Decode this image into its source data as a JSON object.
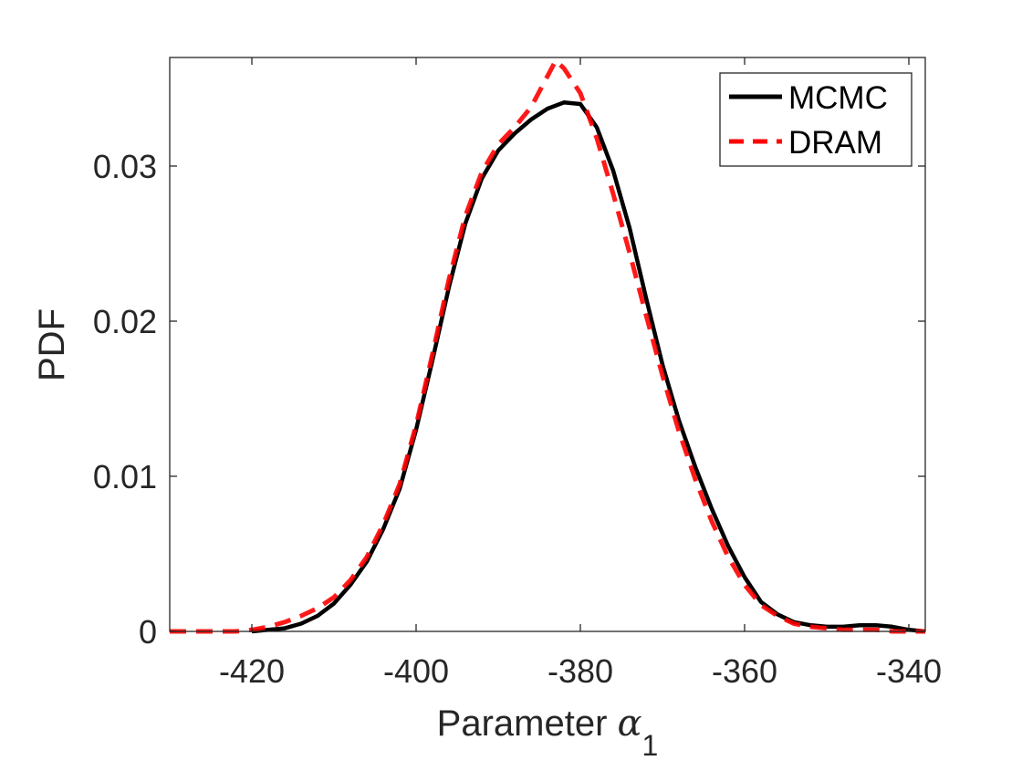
{
  "chart_data": {
    "type": "line",
    "title": "",
    "xlabel": "Parameter ",
    "xlabel_symbol": "α",
    "xlabel_subscript": "1",
    "ylabel": "PDF",
    "xlim": [
      -430,
      -338
    ],
    "ylim": [
      0,
      0.037
    ],
    "xticks": [
      -420,
      -400,
      -380,
      -360,
      -340
    ],
    "xtick_labels": [
      "-420",
      "-400",
      "-380",
      "-360",
      "-340"
    ],
    "yticks": [
      0,
      0.01,
      0.02,
      0.03
    ],
    "ytick_labels": [
      "0",
      "0.01",
      "0.02",
      "0.03"
    ],
    "grid": false,
    "legend_position": "top-right",
    "series": [
      {
        "name": "MCMC",
        "color": "#000000",
        "style": "solid",
        "x": [
          -420,
          -418,
          -416,
          -414,
          -412,
          -410,
          -408,
          -406,
          -404,
          -402,
          -400,
          -398,
          -396,
          -394,
          -392,
          -390,
          -388,
          -386,
          -384,
          -382,
          -380,
          -378,
          -376,
          -374,
          -372,
          -370,
          -368,
          -366,
          -364,
          -362,
          -360,
          -358,
          -356,
          -354,
          -352,
          -350,
          -348,
          -346,
          -344,
          -342,
          -340,
          -338
        ],
        "y": [
          0,
          0.0001,
          0.0002,
          0.0005,
          0.001,
          0.0018,
          0.003,
          0.0045,
          0.0066,
          0.0092,
          0.013,
          0.0175,
          0.0222,
          0.0263,
          0.0292,
          0.031,
          0.0321,
          0.033,
          0.0337,
          0.0341,
          0.034,
          0.0325,
          0.0297,
          0.026,
          0.0215,
          0.0172,
          0.0136,
          0.0106,
          0.0079,
          0.0055,
          0.0035,
          0.0019,
          0.0011,
          0.0006,
          0.0004,
          0.0003,
          0.0003,
          0.0004,
          0.0004,
          0.0003,
          0.0001,
          0
        ]
      },
      {
        "name": "DRAM",
        "color": "#ff0000",
        "style": "dashed",
        "x": [
          -430,
          -426,
          -422,
          -420,
          -418,
          -416,
          -414,
          -412,
          -410,
          -408,
          -406,
          -404,
          -402,
          -400,
          -398,
          -396,
          -394,
          -392,
          -390,
          -388,
          -386,
          -384,
          -383,
          -382,
          -380,
          -378,
          -376,
          -374,
          -372,
          -370,
          -368,
          -366,
          -364,
          -362,
          -360,
          -358,
          -356,
          -354,
          -352,
          -350,
          -348,
          -346,
          -344,
          -342,
          -340,
          -338
        ],
        "y": [
          0,
          0,
          0,
          0.0001,
          0.0003,
          0.0006,
          0.001,
          0.0015,
          0.0022,
          0.0033,
          0.0048,
          0.0069,
          0.0095,
          0.0133,
          0.0179,
          0.0227,
          0.0268,
          0.0296,
          0.0314,
          0.0325,
          0.0338,
          0.0358,
          0.0368,
          0.0363,
          0.0347,
          0.0318,
          0.0282,
          0.0244,
          0.0204,
          0.0165,
          0.0129,
          0.0098,
          0.0071,
          0.0048,
          0.003,
          0.0017,
          0.001,
          0.0005,
          0.0003,
          0.0002,
          0.0001,
          0.0001,
          0.0001,
          0,
          0,
          0
        ]
      }
    ]
  }
}
